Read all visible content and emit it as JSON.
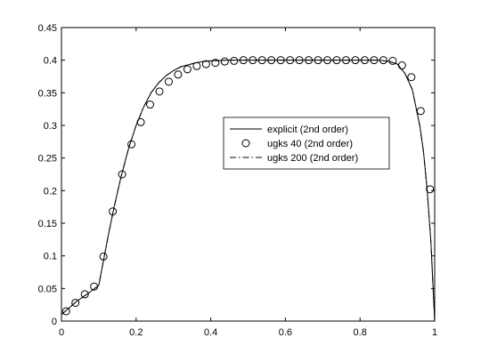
{
  "chart_data": {
    "type": "line",
    "xlim": [
      0,
      1
    ],
    "ylim": [
      0,
      0.45
    ],
    "x_ticks": [
      "0",
      "0.2",
      "0.4",
      "0.6",
      "0.8",
      "1"
    ],
    "y_ticks": [
      "0",
      "0.05",
      "0.1",
      "0.15",
      "0.2",
      "0.25",
      "0.3",
      "0.35",
      "0.4",
      "0.45"
    ],
    "grid": false,
    "legend_position": "center-right",
    "colors": {
      "line": "#000000",
      "background": "#ffffff"
    },
    "series": [
      {
        "name": "explicit (2nd order)",
        "style": "solid",
        "x": [
          0,
          0.02,
          0.04,
          0.06,
          0.08,
          0.1,
          0.11,
          0.125,
          0.14,
          0.16,
          0.18,
          0.2,
          0.22,
          0.24,
          0.26,
          0.28,
          0.3,
          0.32,
          0.34,
          0.36,
          0.38,
          0.4,
          0.45,
          0.5,
          0.6,
          0.7,
          0.8,
          0.85,
          0.88,
          0.9,
          0.92,
          0.94,
          0.96,
          0.97,
          0.98,
          0.99,
          1.0
        ],
        "y": [
          0.01,
          0.02,
          0.03,
          0.038,
          0.046,
          0.055,
          0.085,
          0.13,
          0.172,
          0.222,
          0.265,
          0.3,
          0.328,
          0.35,
          0.365,
          0.376,
          0.384,
          0.39,
          0.393,
          0.396,
          0.398,
          0.399,
          0.4,
          0.4,
          0.4,
          0.4,
          0.4,
          0.4,
          0.398,
          0.394,
          0.38,
          0.355,
          0.3,
          0.26,
          0.2,
          0.12,
          0.0
        ]
      },
      {
        "name": "ugks 40 (2nd order)",
        "style": "circles",
        "x": [
          0.0125,
          0.0375,
          0.0625,
          0.0875,
          0.1125,
          0.1375,
          0.1625,
          0.1875,
          0.2125,
          0.2375,
          0.2625,
          0.2875,
          0.3125,
          0.3375,
          0.3625,
          0.3875,
          0.4125,
          0.4375,
          0.4625,
          0.4875,
          0.5125,
          0.5375,
          0.5625,
          0.5875,
          0.6125,
          0.6375,
          0.6625,
          0.6875,
          0.7125,
          0.7375,
          0.7625,
          0.7875,
          0.8125,
          0.8375,
          0.8625,
          0.8875,
          0.9125,
          0.9375,
          0.9625,
          0.9875
        ],
        "y": [
          0.015,
          0.028,
          0.041,
          0.053,
          0.099,
          0.168,
          0.225,
          0.271,
          0.305,
          0.332,
          0.352,
          0.367,
          0.378,
          0.386,
          0.391,
          0.394,
          0.396,
          0.398,
          0.399,
          0.4,
          0.4,
          0.4,
          0.4,
          0.4,
          0.4,
          0.4,
          0.4,
          0.4,
          0.4,
          0.4,
          0.4,
          0.4,
          0.4,
          0.4,
          0.4,
          0.399,
          0.392,
          0.374,
          0.322,
          0.202
        ]
      },
      {
        "name": "ugks 200 (2nd order)",
        "style": "dashdot",
        "x": [
          0,
          0.02,
          0.04,
          0.06,
          0.08,
          0.1,
          0.11,
          0.125,
          0.14,
          0.16,
          0.18,
          0.2,
          0.22,
          0.24,
          0.26,
          0.28,
          0.3,
          0.32,
          0.34,
          0.36,
          0.38,
          0.4,
          0.45,
          0.5,
          0.6,
          0.7,
          0.8,
          0.85,
          0.88,
          0.9,
          0.92,
          0.94,
          0.96,
          0.97,
          0.98,
          0.99,
          1.0
        ],
        "y": [
          0.01,
          0.02,
          0.03,
          0.038,
          0.046,
          0.055,
          0.085,
          0.13,
          0.172,
          0.222,
          0.265,
          0.3,
          0.328,
          0.35,
          0.365,
          0.376,
          0.384,
          0.39,
          0.393,
          0.396,
          0.398,
          0.399,
          0.4,
          0.4,
          0.4,
          0.4,
          0.4,
          0.4,
          0.398,
          0.394,
          0.38,
          0.355,
          0.3,
          0.26,
          0.2,
          0.12,
          0.0
        ]
      }
    ]
  }
}
